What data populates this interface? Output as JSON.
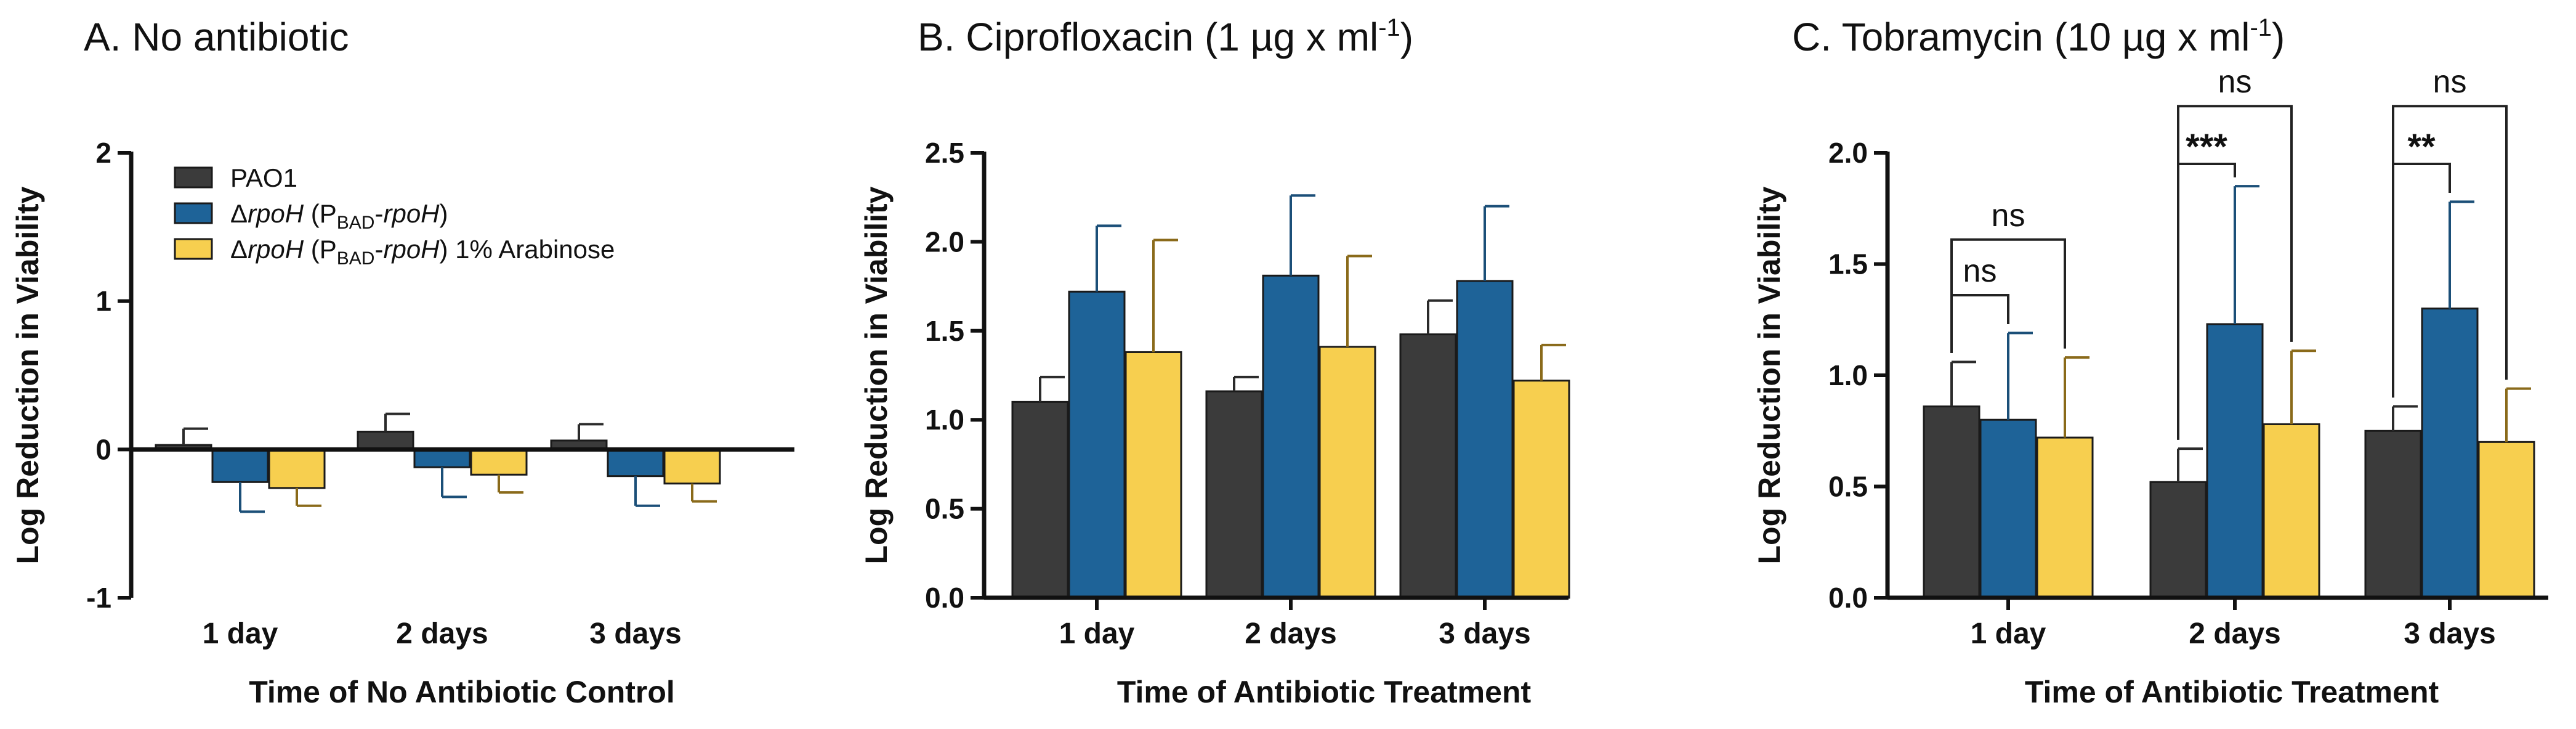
{
  "figure": {
    "colors": {
      "PAO1": "#3b3b3b",
      "rpoH": "#1e6398",
      "rpoH_ara": "#f7cf4f",
      "err_PAO1": "#2b2b2b",
      "err_rpoH": "#1b4f78",
      "err_rpoH_ara": "#8a6a1a",
      "axis": "#111111"
    }
  },
  "chart_data": [
    {
      "panel": "A",
      "type": "bar",
      "title": "A. No antibiotic",
      "xlabel": "Time of No Antibiotic Control",
      "ylabel": "Log Reduction in Viability",
      "ylim": [
        -1,
        2
      ],
      "yticks": [
        -1,
        0,
        1,
        2
      ],
      "ytick_labels": [
        "-1",
        "0",
        "1",
        "2"
      ],
      "x_axis_at_zero": true,
      "categories": [
        "1 day",
        "2 days",
        "3 days"
      ],
      "legend": {
        "placement": "top-left",
        "entries": [
          {
            "name": "PAO1",
            "label_parts": [
              {
                "t": "PAO1"
              }
            ]
          },
          {
            "name": "ΔrpoH (PBAD-rpoH)",
            "label_parts": [
              {
                "t": "Δ"
              },
              {
                "t": "rpoH",
                "style": "italic"
              },
              {
                "t": " (P"
              },
              {
                "t": "BAD",
                "style": "sub"
              },
              {
                "t": "-"
              },
              {
                "t": "rpoH",
                "style": "italic"
              },
              {
                "t": ")"
              }
            ]
          },
          {
            "name": "ΔrpoH (PBAD-rpoH) 1% Arabinose",
            "label_parts": [
              {
                "t": "Δ"
              },
              {
                "t": "rpoH",
                "style": "italic"
              },
              {
                "t": " (P"
              },
              {
                "t": "BAD",
                "style": "sub"
              },
              {
                "t": "-"
              },
              {
                "t": "rpoH",
                "style": "italic"
              },
              {
                "t": ") 1% Arabinose"
              }
            ]
          }
        ]
      },
      "series": [
        {
          "name": "PAO1",
          "values": [
            0.03,
            0.12,
            0.06
          ],
          "errors": [
            0.11,
            0.12,
            0.11
          ]
        },
        {
          "name": "ΔrpoH (PBAD-rpoH)",
          "values": [
            -0.22,
            -0.12,
            -0.18
          ],
          "errors": [
            0.2,
            0.2,
            0.2
          ]
        },
        {
          "name": "ΔrpoH (PBAD-rpoH) 1% Arabinose",
          "values": [
            -0.26,
            -0.17,
            -0.23
          ],
          "errors": [
            0.12,
            0.12,
            0.12
          ]
        }
      ],
      "significance": []
    },
    {
      "panel": "B",
      "type": "bar",
      "title": "B. Ciprofloxacin (1 µg x ml",
      "title_sup": "-1",
      "title_end": ")",
      "xlabel": "Time of Antibiotic Treatment",
      "ylabel": "Log Reduction in Viability",
      "ylim": [
        0,
        2.5
      ],
      "yticks": [
        0,
        0.5,
        1,
        1.5,
        2,
        2.5
      ],
      "ytick_labels": [
        "0.0",
        "0.5",
        "1.0",
        "1.5",
        "2.0",
        "2.5"
      ],
      "categories": [
        "1 day",
        "2 days",
        "3 days"
      ],
      "series": [
        {
          "name": "PAO1",
          "values": [
            1.1,
            1.16,
            1.48
          ],
          "errors": [
            0.14,
            0.08,
            0.19
          ]
        },
        {
          "name": "ΔrpoH (PBAD-rpoH)",
          "values": [
            1.72,
            1.81,
            1.78
          ],
          "errors": [
            0.37,
            0.45,
            0.42
          ]
        },
        {
          "name": "ΔrpoH (PBAD-rpoH) 1% Arabinose",
          "values": [
            1.38,
            1.41,
            1.22
          ],
          "errors": [
            0.63,
            0.51,
            0.2
          ]
        }
      ],
      "significance": []
    },
    {
      "panel": "C",
      "type": "bar",
      "title": "C. Tobramycin (10 µg x ml",
      "title_sup": "-1",
      "title_end": ")",
      "xlabel": "Time of Antibiotic Treatment",
      "ylabel": "Log Reduction in Viability",
      "ylim": [
        0,
        2
      ],
      "yticks": [
        0,
        0.5,
        1,
        1.5,
        2
      ],
      "ytick_labels": [
        "0.0",
        "0.5",
        "1.0",
        "1.5",
        "2.0"
      ],
      "categories": [
        "1 day",
        "2 days",
        "3 days"
      ],
      "series": [
        {
          "name": "PAO1",
          "values": [
            0.86,
            0.52,
            0.75
          ],
          "errors": [
            0.2,
            0.15,
            0.11
          ]
        },
        {
          "name": "ΔrpoH (PBAD-rpoH)",
          "values": [
            0.8,
            1.23,
            1.3
          ],
          "errors": [
            0.39,
            0.62,
            0.48
          ]
        },
        {
          "name": "ΔrpoH (PBAD-rpoH) 1% Arabinose",
          "values": [
            0.72,
            0.78,
            0.7
          ],
          "errors": [
            0.36,
            0.33,
            0.24
          ]
        }
      ],
      "significance": [
        {
          "category": 0,
          "from": 0,
          "to": 1,
          "label": "ns",
          "level": 1.36
        },
        {
          "category": 0,
          "from": 0,
          "to": 2,
          "label": "ns",
          "level": 1.61
        },
        {
          "category": 1,
          "from": 0,
          "to": 1,
          "label": "***",
          "level": 1.95
        },
        {
          "category": 1,
          "from": 0,
          "to": 2,
          "label": "ns",
          "level": 2.21
        },
        {
          "category": 2,
          "from": 0,
          "to": 1,
          "label": "**",
          "level": 1.95
        },
        {
          "category": 2,
          "from": 0,
          "to": 2,
          "label": "ns",
          "level": 2.21
        }
      ]
    }
  ]
}
